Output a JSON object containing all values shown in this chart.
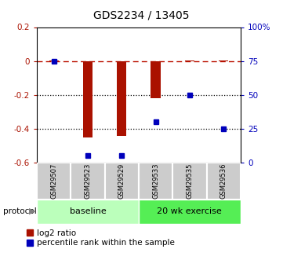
{
  "title": "GDS2234 / 13405",
  "samples": [
    "GSM29507",
    "GSM29523",
    "GSM29529",
    "GSM29533",
    "GSM29535",
    "GSM29536"
  ],
  "log2_ratio": [
    0.005,
    -0.45,
    -0.44,
    -0.22,
    0.005,
    0.005
  ],
  "percentile_rank": [
    75,
    5,
    5,
    30,
    50,
    25
  ],
  "ylim_left": [
    -0.6,
    0.2
  ],
  "ylim_right": [
    0,
    100
  ],
  "bar_color": "#aa1100",
  "dot_color": "#0000bb",
  "dashed_line_color": "#bb1100",
  "dotted_line_color": "#000000",
  "baseline_color": "#bbffbb",
  "exercise_color": "#55ee55",
  "sample_box_color": "#cccccc",
  "legend_red_label": "log2 ratio",
  "legend_blue_label": "percentile rank within the sample",
  "title_fontsize": 10
}
